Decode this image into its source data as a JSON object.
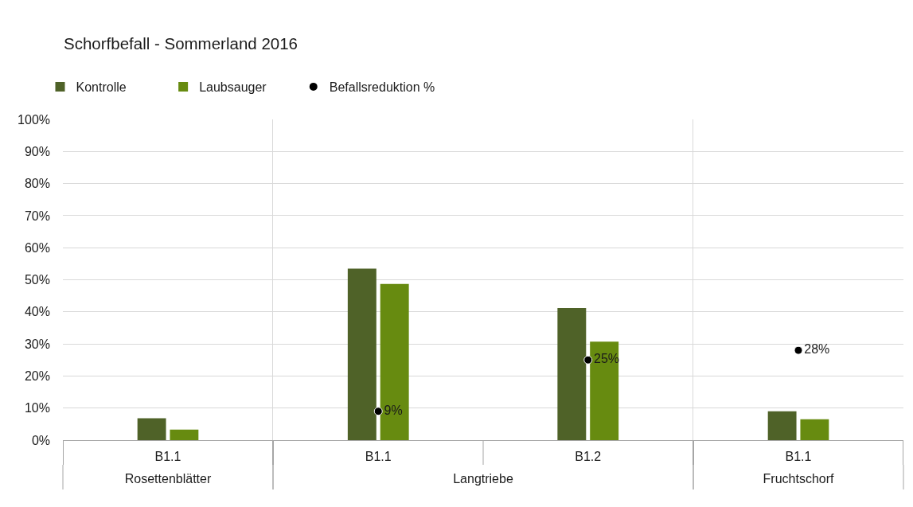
{
  "chart_data": [
    {
      "type": "bar",
      "title": "Schorfbefall - Sommerland 2016",
      "xlabel": "Rosettenblätter",
      "categories": [
        "B1.1"
      ],
      "series": [
        {
          "color": "#4f6228",
          "values": [
            6.8
          ]
        },
        {
          "color": "#678b10",
          "values": [
            3.3
          ]
        }
      ],
      "ylim": [
        0,
        100
      ],
      "yticks": [
        {
          "value": 0,
          "label": "0%"
        },
        {
          "value": 10,
          "label": "10%"
        },
        {
          "value": 20,
          "label": "20%"
        },
        {
          "value": 30,
          "label": "30%"
        },
        {
          "value": 40,
          "label": "40%"
        },
        {
          "value": 50,
          "label": "50%"
        },
        {
          "value": 60,
          "label": "60%"
        },
        {
          "value": 70,
          "label": "70%"
        },
        {
          "value": 80,
          "label": "80%"
        },
        {
          "value": 90,
          "label": "90%"
        },
        {
          "value": 100,
          "label": "100%"
        }
      ],
      "grid": "y"
    },
    {
      "type": "bar",
      "xlabel": "Langtriebe",
      "categories": [
        "B1.1",
        "B1.2"
      ],
      "series": [
        {
          "name": "Kontrolle",
          "color": "#4f6228",
          "values": [
            53.5,
            41.2
          ]
        },
        {
          "name": "Laubsauger",
          "color": "#678b10",
          "values": [
            48.7,
            30.7
          ]
        },
        {
          "name": "Befallsreduktion %",
          "type": "scatter",
          "color": "#000000",
          "marker": "circle",
          "values": [
            9,
            25
          ],
          "value_labels": [
            "9%",
            "25%"
          ]
        }
      ],
      "ylim": [
        0,
        100
      ],
      "yticks": [
        0,
        10,
        20,
        30,
        40,
        50,
        60,
        70,
        80,
        90,
        100
      ],
      "grid": "y",
      "tick_labels": "x",
      "legend": "top left"
    },
    {
      "type": "bar",
      "xlabel": "Fruchtschorf",
      "categories": [
        "B1.1"
      ],
      "series": [
        {
          "color": "#4f6228",
          "values": [
            9.0
          ]
        },
        {
          "color": "#678b10",
          "values": [
            6.5
          ]
        },
        {
          "type": "scatter",
          "color": "#000000",
          "marker": "circle",
          "values": [
            28
          ],
          "value_labels": [
            "28%"
          ]
        }
      ],
      "ylim": [
        0,
        100
      ],
      "yticks": [
        0,
        10,
        20,
        30,
        40,
        50,
        60,
        70,
        80,
        90,
        100
      ],
      "grid": "y",
      "tick_labels": "x"
    }
  ]
}
